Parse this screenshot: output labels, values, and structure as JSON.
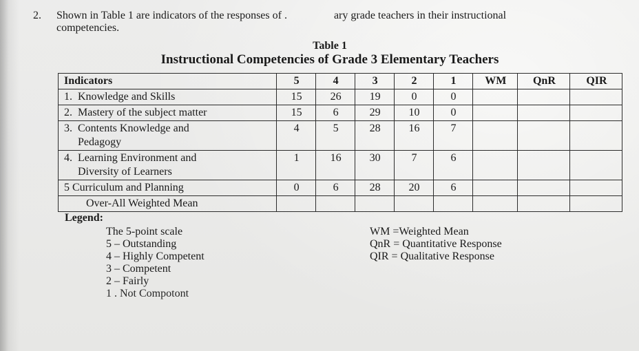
{
  "question": {
    "number": "2.",
    "text_1": "Shown in Table 1 are indicators of the responses of .",
    "text_2": "ary grade teachers in their instructional",
    "text_3": "competencies."
  },
  "table": {
    "label": "Table 1",
    "title": "Instructional Competencies of Grade 3 Elementary Teachers",
    "header_indicators": "Indicators",
    "columns": [
      "5",
      "4",
      "3",
      "2",
      "1",
      "WM",
      "QnR",
      "QIR"
    ],
    "rows": [
      {
        "label": "1.  Knowledge and Skills",
        "v": [
          "15",
          "26",
          "19",
          "0",
          "0",
          "",
          "",
          ""
        ]
      },
      {
        "label": "2.  Mastery of the subject matter",
        "v": [
          "15",
          "6",
          "29",
          "10",
          "0",
          "",
          "",
          ""
        ]
      },
      {
        "label": "3.  Contents Knowledge and\n     Pedagogy",
        "v": [
          "4",
          "5",
          "28",
          "16",
          "7",
          "",
          "",
          ""
        ]
      },
      {
        "label": "4.  Learning Environment and\n     Diversity of Learners",
        "v": [
          "1",
          "16",
          "30",
          "7",
          "6",
          "",
          "",
          ""
        ]
      },
      {
        "label": "5 Curriculum and Planning",
        "v": [
          "0",
          "6",
          "28",
          "20",
          "6",
          "",
          "",
          ""
        ]
      },
      {
        "label": "        Over-All Weighted Mean",
        "v": [
          "",
          "",
          "",
          "",
          "",
          "",
          "",
          ""
        ]
      }
    ]
  },
  "legend": {
    "head": "Legend:",
    "left": [
      "The 5-point scale",
      "5 – Outstanding",
      "4 –  Highly Competent",
      "3 –  Competent",
      "2 –  Fairly",
      "1 .  Not Compotont"
    ],
    "right": [
      "WM  =Weighted Mean",
      "QnR = Quantitative Response",
      "QIR = Qualitative Response"
    ]
  }
}
